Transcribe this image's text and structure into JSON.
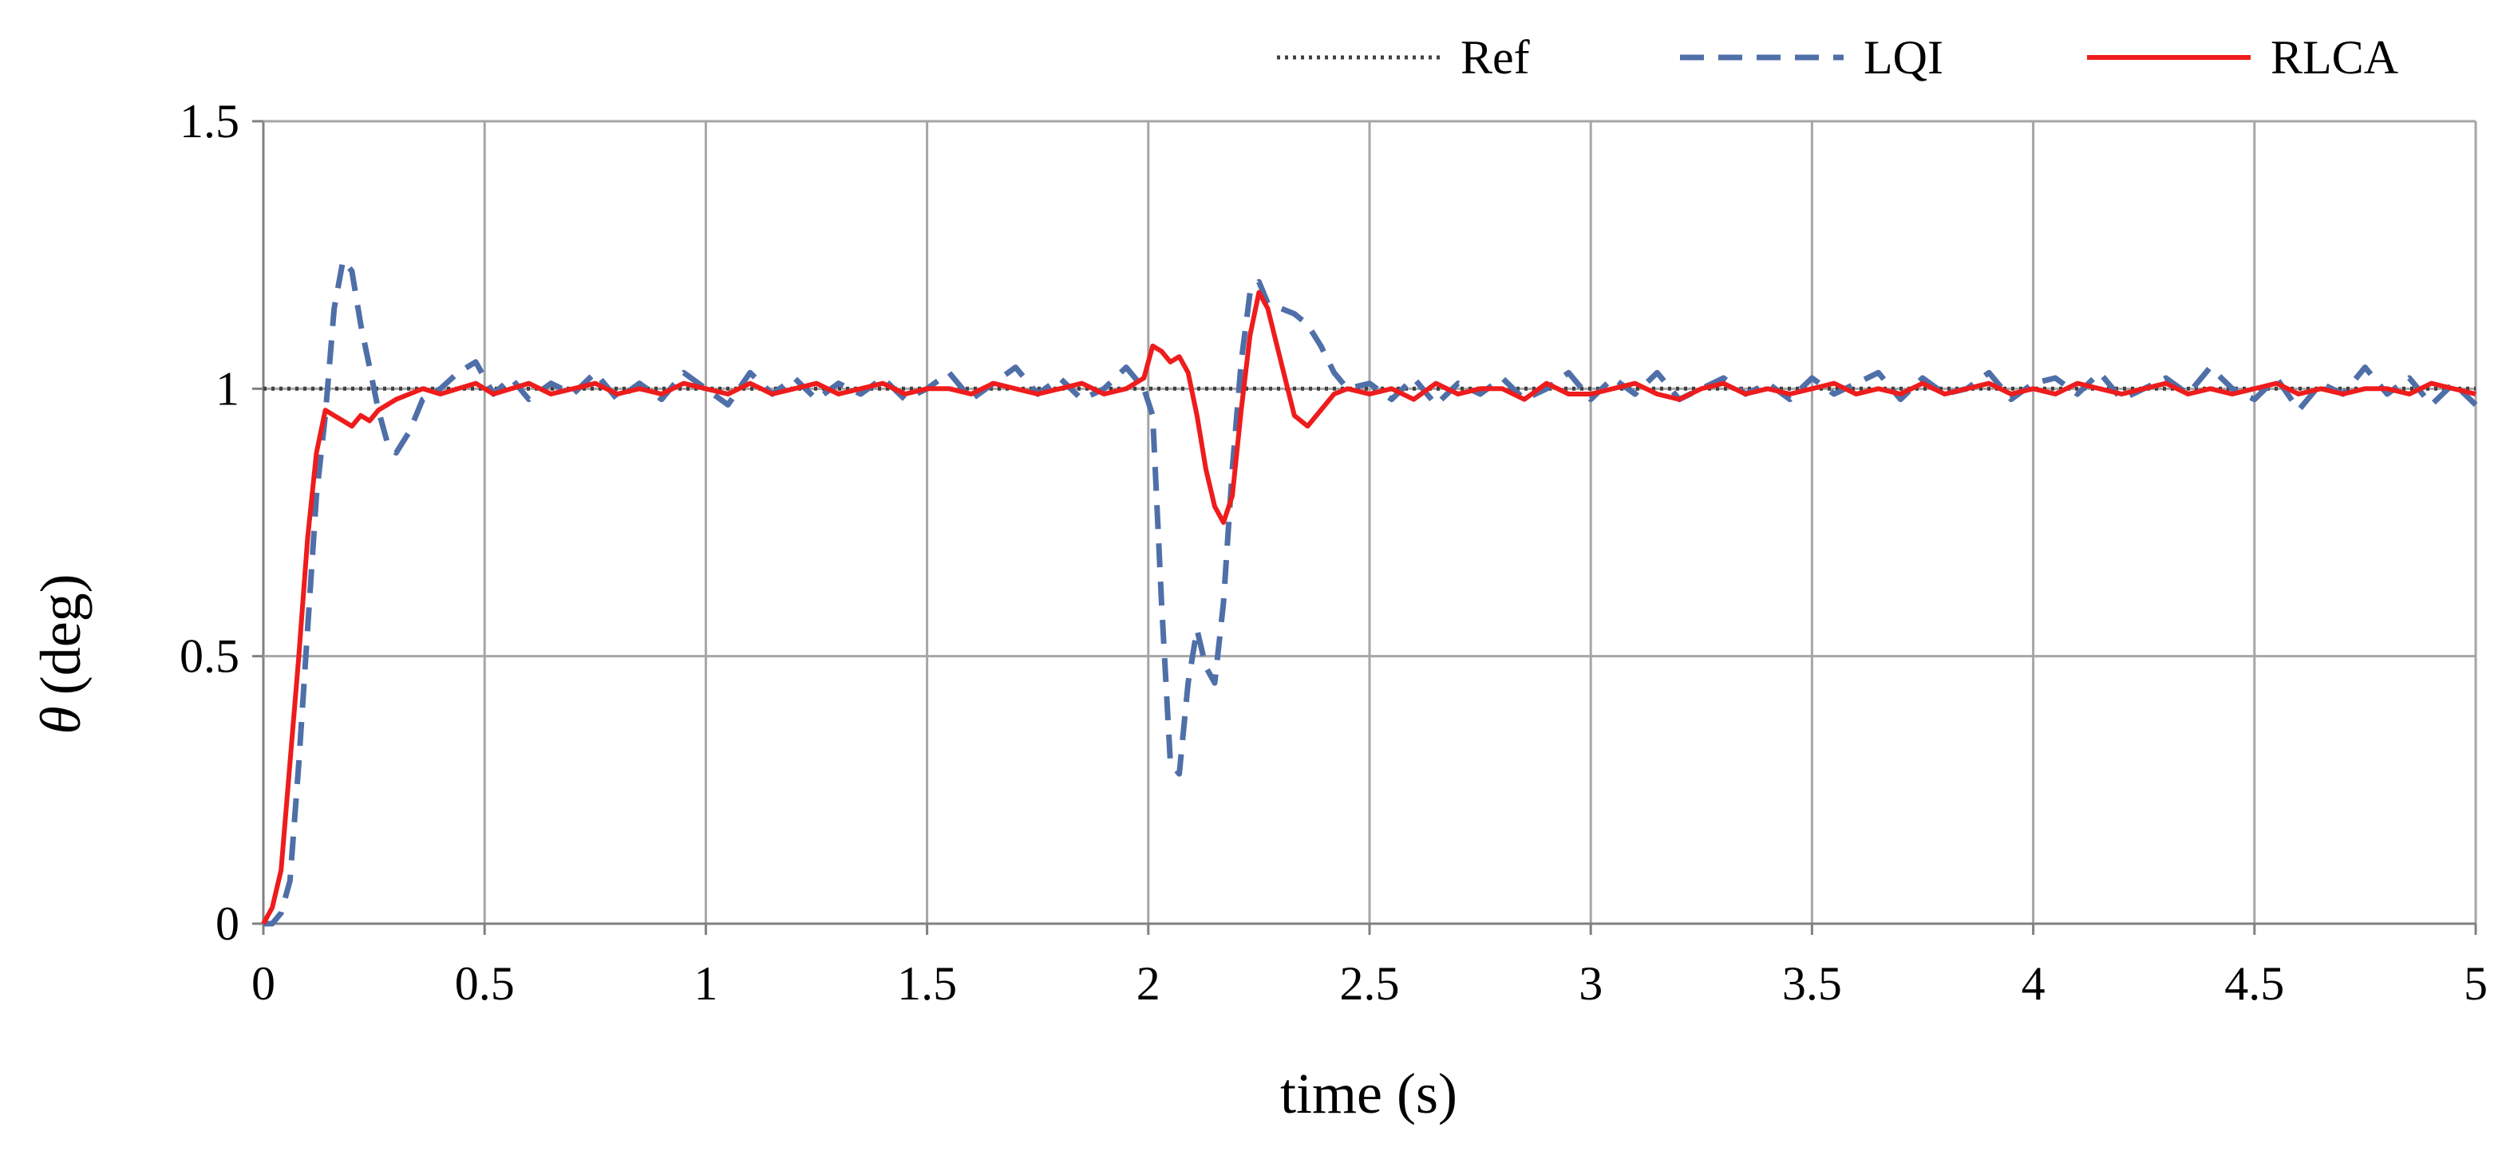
{
  "chart_data": {
    "type": "line",
    "title": "",
    "xlabel": "time (s)",
    "ylabel_symbol": "θ",
    "ylabel_unit": "(deg)",
    "xlim": [
      0,
      5
    ],
    "ylim": [
      0,
      1.5
    ],
    "x_ticks": [
      "0",
      "0.5",
      "1",
      "1.5",
      "2",
      "2.5",
      "3",
      "3.5",
      "4",
      "4.5",
      "5"
    ],
    "y_ticks": [
      "0",
      "0.5",
      "1",
      "1.5"
    ],
    "grid": true,
    "legend_position": "top-right",
    "series": [
      {
        "name": "Ref",
        "color": "#404040",
        "style": "dotted",
        "x": [
          0,
          5
        ],
        "y": [
          1,
          1
        ]
      },
      {
        "name": "LQI",
        "color": "#4f6fa8",
        "style": "dashed",
        "x": [
          0,
          0.02,
          0.04,
          0.06,
          0.08,
          0.1,
          0.12,
          0.14,
          0.16,
          0.18,
          0.2,
          0.22,
          0.24,
          0.26,
          0.28,
          0.3,
          0.33,
          0.36,
          0.4,
          0.44,
          0.48,
          0.52,
          0.56,
          0.6,
          0.65,
          0.7,
          0.75,
          0.8,
          0.85,
          0.9,
          0.95,
          1.0,
          1.05,
          1.1,
          1.15,
          1.2,
          1.25,
          1.3,
          1.35,
          1.4,
          1.45,
          1.5,
          1.55,
          1.6,
          1.65,
          1.7,
          1.75,
          1.8,
          1.85,
          1.9,
          1.95,
          1.99,
          2.01,
          2.03,
          2.05,
          2.07,
          2.09,
          2.11,
          2.13,
          2.15,
          2.17,
          2.19,
          2.21,
          2.23,
          2.25,
          2.27,
          2.3,
          2.33,
          2.36,
          2.39,
          2.42,
          2.45,
          2.5,
          2.55,
          2.6,
          2.65,
          2.7,
          2.75,
          2.8,
          2.85,
          2.9,
          2.95,
          3.0,
          3.05,
          3.1,
          3.15,
          3.2,
          3.25,
          3.3,
          3.35,
          3.4,
          3.45,
          3.5,
          3.55,
          3.6,
          3.65,
          3.7,
          3.75,
          3.8,
          3.85,
          3.9,
          3.95,
          4.0,
          4.05,
          4.1,
          4.15,
          4.2,
          4.25,
          4.3,
          4.35,
          4.4,
          4.45,
          4.5,
          4.55,
          4.6,
          4.65,
          4.7,
          4.75,
          4.8,
          4.85,
          4.9,
          4.95,
          5.0
        ],
        "y": [
          0,
          0,
          0.02,
          0.08,
          0.3,
          0.55,
          0.8,
          0.95,
          1.15,
          1.24,
          1.22,
          1.12,
          1.04,
          0.96,
          0.9,
          0.88,
          0.92,
          0.98,
          1.0,
          1.03,
          1.05,
          0.99,
          1.02,
          0.98,
          1.01,
          0.99,
          1.03,
          0.98,
          1.01,
          0.98,
          1.03,
          1.0,
          0.97,
          1.03,
          0.99,
          1.02,
          0.98,
          1.01,
          0.99,
          1.02,
          0.98,
          1.0,
          1.03,
          0.98,
          1.01,
          1.04,
          0.99,
          1.02,
          0.98,
          1.0,
          1.04,
          1.0,
          0.95,
          0.6,
          0.3,
          0.28,
          0.45,
          0.55,
          0.48,
          0.45,
          0.6,
          0.85,
          1.05,
          1.18,
          1.2,
          1.16,
          1.15,
          1.14,
          1.12,
          1.08,
          1.03,
          1.0,
          1.01,
          0.98,
          1.02,
          0.97,
          1.01,
          0.99,
          1.02,
          0.98,
          1.0,
          1.03,
          0.98,
          1.02,
          0.99,
          1.03,
          0.98,
          1.0,
          1.02,
          0.99,
          1.01,
          0.98,
          1.02,
          0.99,
          1.01,
          1.03,
          0.98,
          1.02,
          0.99,
          1.0,
          1.03,
          0.98,
          1.01,
          1.02,
          0.99,
          1.03,
          0.98,
          1.0,
          1.02,
          0.99,
          1.04,
          1.0,
          0.98,
          1.02,
          0.96,
          1.01,
          0.99,
          1.04,
          0.99,
          1.02,
          0.97,
          1.01,
          0.97
        ]
      },
      {
        "name": "RLCA",
        "color": "#ee1c1c",
        "style": "solid",
        "x": [
          0,
          0.02,
          0.04,
          0.06,
          0.08,
          0.1,
          0.12,
          0.14,
          0.16,
          0.18,
          0.2,
          0.22,
          0.24,
          0.26,
          0.28,
          0.3,
          0.33,
          0.36,
          0.4,
          0.44,
          0.48,
          0.52,
          0.56,
          0.6,
          0.65,
          0.7,
          0.75,
          0.8,
          0.85,
          0.9,
          0.95,
          1.0,
          1.05,
          1.1,
          1.15,
          1.2,
          1.25,
          1.3,
          1.35,
          1.4,
          1.45,
          1.5,
          1.55,
          1.6,
          1.65,
          1.7,
          1.75,
          1.8,
          1.85,
          1.9,
          1.95,
          1.99,
          2.01,
          2.03,
          2.05,
          2.07,
          2.09,
          2.11,
          2.13,
          2.15,
          2.17,
          2.19,
          2.21,
          2.23,
          2.25,
          2.27,
          2.3,
          2.33,
          2.36,
          2.39,
          2.42,
          2.45,
          2.5,
          2.55,
          2.6,
          2.65,
          2.7,
          2.75,
          2.8,
          2.85,
          2.9,
          2.95,
          3.0,
          3.05,
          3.1,
          3.15,
          3.2,
          3.25,
          3.3,
          3.35,
          3.4,
          3.45,
          3.5,
          3.55,
          3.6,
          3.65,
          3.7,
          3.75,
          3.8,
          3.85,
          3.9,
          3.95,
          4.0,
          4.05,
          4.1,
          4.15,
          4.2,
          4.25,
          4.3,
          4.35,
          4.4,
          4.45,
          4.5,
          4.55,
          4.6,
          4.65,
          4.7,
          4.75,
          4.8,
          4.85,
          4.9,
          4.95,
          5.0
        ],
        "y": [
          0,
          0.03,
          0.1,
          0.3,
          0.5,
          0.72,
          0.88,
          0.96,
          0.95,
          0.94,
          0.93,
          0.95,
          0.94,
          0.96,
          0.97,
          0.98,
          0.99,
          1.0,
          0.99,
          1.0,
          1.01,
          0.99,
          1.0,
          1.01,
          0.99,
          1.0,
          1.01,
          0.99,
          1.0,
          0.99,
          1.01,
          1.0,
          0.99,
          1.01,
          0.99,
          1.0,
          1.01,
          0.99,
          1.0,
          1.01,
          0.99,
          1.0,
          1.0,
          0.99,
          1.01,
          1.0,
          0.99,
          1.0,
          1.01,
          0.99,
          1.0,
          1.02,
          1.08,
          1.07,
          1.05,
          1.06,
          1.03,
          0.95,
          0.85,
          0.78,
          0.75,
          0.8,
          0.96,
          1.1,
          1.18,
          1.15,
          1.05,
          0.95,
          0.93,
          0.96,
          0.99,
          1.0,
          0.99,
          1.0,
          0.98,
          1.01,
          0.99,
          1.0,
          1.0,
          0.98,
          1.01,
          0.99,
          0.99,
          1.0,
          1.01,
          0.99,
          0.98,
          1.0,
          1.01,
          0.99,
          1.0,
          0.99,
          1.0,
          1.01,
          0.99,
          1.0,
          0.99,
          1.01,
          0.99,
          1.0,
          1.01,
          0.99,
          1.0,
          0.99,
          1.01,
          1.0,
          0.99,
          1.0,
          1.01,
          0.99,
          1.0,
          0.99,
          1.0,
          1.01,
          0.99,
          1.0,
          0.99,
          1.0,
          1.0,
          0.99,
          1.01,
          1.0,
          0.99
        ]
      }
    ]
  }
}
